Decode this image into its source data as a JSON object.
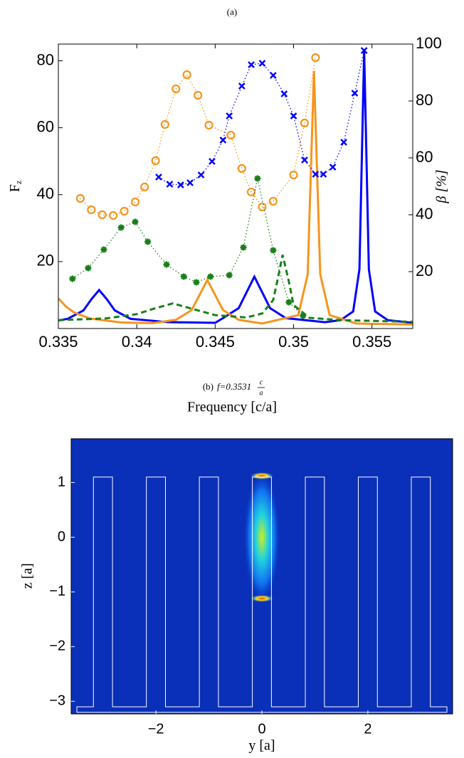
{
  "chart_data": [
    {
      "type": "line",
      "title": "(a)",
      "xlabel": "Frequency [c/a]",
      "ylabel": "F",
      "ylabel_sub": "z",
      "y2label": "β [%]",
      "xlim": [
        0.335,
        0.3576
      ],
      "xticks": [
        0.335,
        0.34,
        0.345,
        0.35,
        0.355
      ],
      "ylim": [
        0,
        85
      ],
      "yticks": [
        20,
        40,
        60,
        80
      ],
      "y2lim": [
        0,
        100
      ],
      "y2ticks": [
        20,
        40,
        60,
        80,
        100
      ],
      "series": [
        {
          "color": "#0000ff",
          "style": "solid",
          "marker": "none",
          "axis": "y",
          "x": [
            0.335,
            0.3356,
            0.3366,
            0.3371,
            0.3376,
            0.3381,
            0.3386,
            0.3396,
            0.342,
            0.345,
            0.3455,
            0.3465,
            0.347,
            0.3475,
            0.348,
            0.3485,
            0.3495,
            0.352,
            0.353,
            0.3538,
            0.3542,
            0.3545,
            0.3548,
            0.3552,
            0.356,
            0.3576
          ],
          "values": [
            2.4,
            2.9,
            5.4,
            8.7,
            11.5,
            8.7,
            5.4,
            2.9,
            1.9,
            1.7,
            3.1,
            6.1,
            10.8,
            15.5,
            10.8,
            6.1,
            3.1,
            1.9,
            2.5,
            5.1,
            17.7,
            83,
            17.7,
            5.1,
            2.5,
            1.7
          ]
        },
        {
          "color": "#f7941d",
          "style": "solid",
          "marker": "none",
          "axis": "y",
          "x": [
            0.335,
            0.3355,
            0.336,
            0.337,
            0.339,
            0.341,
            0.3425,
            0.3435,
            0.344,
            0.3445,
            0.345,
            0.3455,
            0.3465,
            0.348,
            0.3503,
            0.3509,
            0.3513,
            0.3517,
            0.3523,
            0.354,
            0.3576
          ],
          "values": [
            9,
            6.5,
            4.8,
            3,
            1.8,
            1.6,
            2.6,
            5.5,
            10,
            14.5,
            10,
            5.5,
            2.6,
            1.5,
            4,
            16.2,
            77,
            16.2,
            4,
            1.5,
            1.2
          ]
        },
        {
          "color": "#1a7f1a",
          "style": "dashed",
          "marker": "none",
          "axis": "y",
          "x": [
            0.335,
            0.338,
            0.34,
            0.341,
            0.3423,
            0.3436,
            0.345,
            0.347,
            0.348,
            0.3487,
            0.349,
            0.3493,
            0.3497,
            0.35,
            0.351,
            0.353,
            0.3576
          ],
          "values": [
            2.5,
            3,
            4.3,
            5.8,
            7.5,
            5.8,
            4,
            3.3,
            4.5,
            8.5,
            15,
            22,
            14,
            7,
            3.2,
            2.5,
            2
          ]
        },
        {
          "color": "#f7941d",
          "style": "dotted",
          "marker": "circle",
          "axis": "y2",
          "x": [
            0.3364,
            0.3371,
            0.3378,
            0.3385,
            0.3392,
            0.3399,
            0.3405,
            0.3412,
            0.3418,
            0.3425,
            0.3432,
            0.3439,
            0.3446,
            0.346,
            0.3467,
            0.3473,
            0.348,
            0.3487,
            0.35,
            0.3507,
            0.3514
          ],
          "values": [
            45.75,
            41.75,
            40,
            39.75,
            41.25,
            44.5,
            49.75,
            59,
            71.75,
            84.25,
            89.25,
            82,
            71.5,
            68,
            56.25,
            48,
            42.75,
            44.75,
            54,
            72.25,
            95.25
          ]
        },
        {
          "color": "#0000ff",
          "style": "dotted",
          "marker": "x",
          "axis": "y2",
          "x": [
            0.3414,
            0.3421,
            0.3428,
            0.3434,
            0.3441,
            0.3448,
            0.3455,
            0.3459,
            0.3467,
            0.3473,
            0.348,
            0.3487,
            0.3494,
            0.35,
            0.3507,
            0.3514,
            0.3519,
            0.3525,
            0.3532,
            0.3539,
            0.3545
          ],
          "values": [
            53.25,
            50.75,
            50.5,
            51.25,
            54,
            58.75,
            66.25,
            74.75,
            85.25,
            92.75,
            93.25,
            89,
            82.5,
            74.75,
            59.25,
            54.25,
            54.25,
            56.75,
            65.5,
            82.75,
            97.75
          ]
        },
        {
          "color": "#1a7f1a",
          "style": "dotted",
          "marker": "star",
          "axis": "y2",
          "x": [
            0.3359,
            0.3369,
            0.3379,
            0.339,
            0.3399,
            0.3407,
            0.3419,
            0.343,
            0.3438,
            0.3447,
            0.3459,
            0.3468,
            0.3477,
            0.3487,
            0.3497,
            0.3506
          ],
          "values": [
            17.5,
            21.25,
            27.75,
            35.5,
            37.5,
            30.5,
            22.5,
            18.25,
            16.25,
            18.25,
            18.75,
            28.5,
            52.75,
            27.5,
            9.25,
            4.5
          ]
        }
      ]
    },
    {
      "type": "heatmap",
      "title": "(b)",
      "title_f": "f=0.3531",
      "title_num": "c",
      "title_den": "a",
      "xlabel": "y [a]",
      "ylabel": "z [a]",
      "xlim": [
        -3.6,
        3.6
      ],
      "xticks": [
        {
          "value": -2,
          "label": "−2"
        },
        0,
        2
      ],
      "ylim": [
        -3.23,
        1.8
      ],
      "yticks": [
        {
          "value": -3,
          "label": "−3"
        },
        {
          "value": -2,
          "label": "−2"
        },
        {
          "value": -1,
          "label": "−1"
        },
        0,
        1
      ]
    }
  ]
}
